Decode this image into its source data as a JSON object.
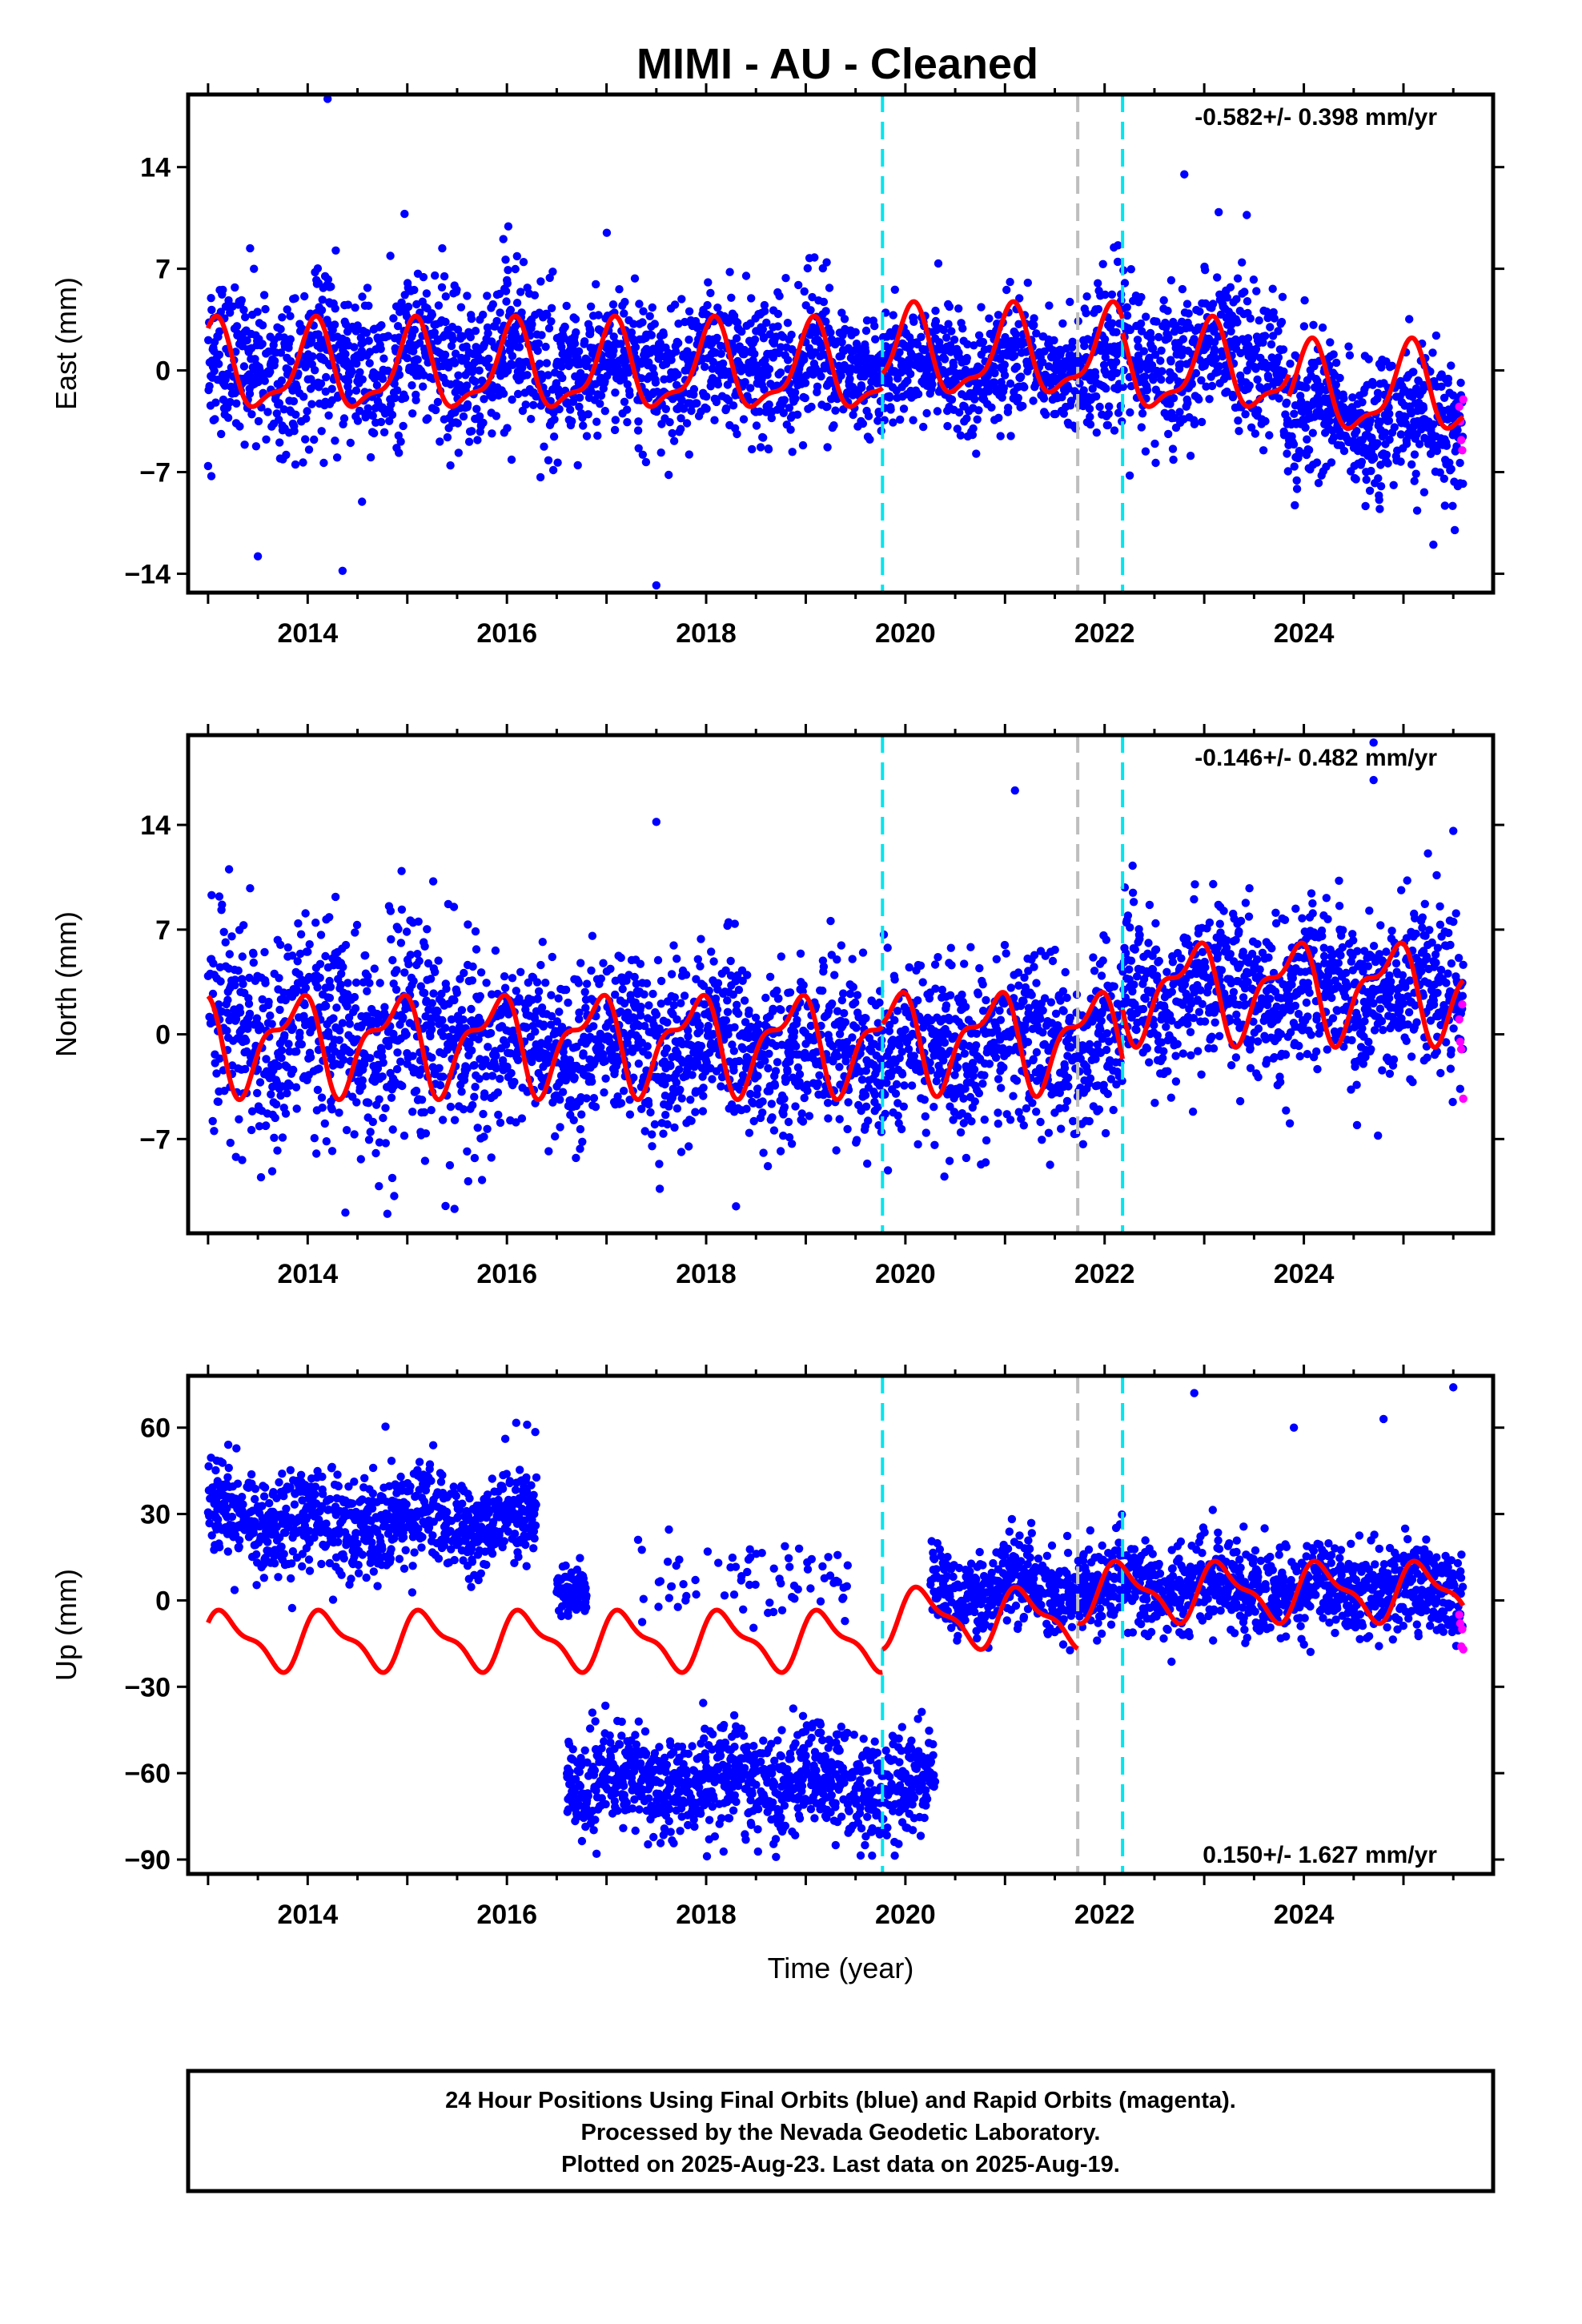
{
  "title": "MIMI  - AU - Cleaned",
  "footer": {
    "line1": "24 Hour Positions Using Final Orbits (blue) and Rapid Orbits (magenta).",
    "line2": "Processed by the Nevada Geodetic Laboratory.",
    "line3": "Plotted on 2025-Aug-23. Last data on 2025-Aug-19."
  },
  "colors": {
    "final_orbits": "#0000ff",
    "rapid_orbits": "#ff00ff",
    "model": "#ff0000",
    "equipment_change": "#00e5ee",
    "other_event": "#bebebe"
  },
  "chart_data": [
    {
      "type": "scatter",
      "panel": "east",
      "ylabel": "East (mm)",
      "xlabel": "",
      "rate_text": "-0.582+/- 0.398 mm/yr",
      "rate_position": "top-right",
      "xlim": [
        2012.8,
        2025.9
      ],
      "ylim": [
        -15.3,
        19.0
      ],
      "xticks": [
        2014,
        2016,
        2018,
        2020,
        2022,
        2024
      ],
      "yticks": [
        -14,
        -7,
        0,
        7,
        14
      ],
      "event_lines": [
        {
          "x": 2019.77,
          "kind": "equipment_change"
        },
        {
          "x": 2021.73,
          "kind": "other_event"
        },
        {
          "x": 2022.18,
          "kind": "equipment_change"
        }
      ],
      "data_segments": [
        {
          "from": 2013.0,
          "to": 2016.55,
          "mean": 0.5,
          "spread": 4.0
        },
        {
          "from": 2016.55,
          "to": 2019.3,
          "mean": 0.5,
          "spread": 3.5
        },
        {
          "from": 2019.3,
          "to": 2021.8,
          "mean": 0.3,
          "spread": 2.6
        },
        {
          "from": 2021.8,
          "to": 2023.8,
          "mean": 0.8,
          "spread": 4.0
        },
        {
          "from": 2023.8,
          "to": 2025.6,
          "mean": -3.5,
          "spread": 3.5
        }
      ],
      "outliers": [
        [
          2014.2,
          18.7
        ],
        [
          2017.5,
          -14.8
        ],
        [
          2022.8,
          13.5
        ],
        [
          2025.3,
          -12.0
        ],
        [
          2014.35,
          -13.8
        ],
        [
          2013.5,
          -12.8
        ]
      ],
      "rapid_points": [
        [
          2025.56,
          -2.5
        ],
        [
          2025.57,
          -3.5
        ],
        [
          2025.58,
          -4.8
        ],
        [
          2025.59,
          -5.5
        ],
        [
          2025.6,
          -2.0
        ]
      ],
      "model": {
        "description": "seasonal fit",
        "segments": [
          {
            "from": 2013.0,
            "to": 2019.77,
            "offset": 0.0
          },
          {
            "from": 2019.77,
            "to": 2022.18,
            "offset": 1.0
          },
          {
            "from": 2022.18,
            "to": 2023.85,
            "offset": 0.0
          },
          {
            "from": 2023.85,
            "to": 2025.6,
            "offset": -1.5
          }
        ],
        "annual_amp": 2.8,
        "semiannual_amp": 1.0,
        "annual_phase": 1.2,
        "semiannual_phase": 0.3
      }
    },
    {
      "type": "scatter",
      "panel": "north",
      "ylabel": "North (mm)",
      "xlabel": "",
      "rate_text": "-0.146+/- 0.482 mm/yr",
      "rate_position": "top-right",
      "xlim": [
        2012.8,
        2025.9
      ],
      "ylim": [
        -13.3,
        20.0
      ],
      "xticks": [
        2014,
        2016,
        2018,
        2020,
        2022,
        2024
      ],
      "yticks": [
        -7,
        0,
        7,
        14
      ],
      "event_lines": [
        {
          "x": 2019.77,
          "kind": "equipment_change"
        },
        {
          "x": 2021.73,
          "kind": "other_event"
        },
        {
          "x": 2022.18,
          "kind": "equipment_change"
        }
      ],
      "data_segments": [
        {
          "from": 2013.0,
          "to": 2016.0,
          "mean": 0.0,
          "spread": 5.0
        },
        {
          "from": 2016.0,
          "to": 2019.77,
          "mean": -0.8,
          "spread": 4.0
        },
        {
          "from": 2019.77,
          "to": 2022.18,
          "mean": -0.5,
          "spread": 4.0
        },
        {
          "from": 2022.18,
          "to": 2025.6,
          "mean": 2.8,
          "spread": 4.0
        }
      ],
      "outliers": [
        [
          2024.7,
          19.5
        ],
        [
          2021.1,
          16.3
        ],
        [
          2024.7,
          17.0
        ],
        [
          2017.5,
          14.2
        ],
        [
          2018.3,
          -11.5
        ],
        [
          2014.8,
          -12.0
        ],
        [
          2025.5,
          13.6
        ]
      ],
      "rapid_points": [
        [
          2025.56,
          1.0
        ],
        [
          2025.57,
          -0.5
        ],
        [
          2025.58,
          -1.0
        ],
        [
          2025.6,
          -4.3
        ],
        [
          2025.59,
          2.0
        ]
      ],
      "model": {
        "description": "seasonal fit",
        "segments": [
          {
            "from": 2013.0,
            "to": 2019.77,
            "offset": -0.5
          },
          {
            "from": 2019.77,
            "to": 2022.18,
            "offset": -0.3
          },
          {
            "from": 2022.18,
            "to": 2025.6,
            "offset": 3.0
          }
        ],
        "annual_amp": 2.8,
        "semiannual_amp": 1.3,
        "annual_phase": 2.4,
        "semiannual_phase": 1.1
      }
    },
    {
      "type": "scatter",
      "panel": "up",
      "ylabel": "Up (mm)",
      "xlabel": "Time (year)",
      "rate_text": "0.150+/- 1.627 mm/yr",
      "rate_position": "bottom-right",
      "xlim": [
        2012.8,
        2025.9
      ],
      "ylim": [
        -95.0,
        78.0
      ],
      "xticks": [
        2014,
        2016,
        2018,
        2020,
        2022,
        2024
      ],
      "yticks": [
        -90,
        -60,
        -30,
        0,
        30,
        60
      ],
      "event_lines": [
        {
          "x": 2019.77,
          "kind": "equipment_change"
        },
        {
          "x": 2021.73,
          "kind": "other_event"
        },
        {
          "x": 2022.18,
          "kind": "equipment_change"
        }
      ],
      "data_segments": [
        {
          "from": 2013.0,
          "to": 2016.3,
          "mean": 28.0,
          "spread": 13.0
        },
        {
          "from": 2016.5,
          "to": 2016.8,
          "mean": 5.0,
          "spread": 6.0
        },
        {
          "from": 2016.6,
          "to": 2020.3,
          "mean": -63.0,
          "spread": 13.0
        },
        {
          "from": 2017.3,
          "to": 2019.5,
          "mean": 8.0,
          "spread": 10.0,
          "density": 0.12
        },
        {
          "from": 2020.25,
          "to": 2025.6,
          "mean": 4.0,
          "spread": 11.0
        }
      ],
      "outliers": [
        [
          2022.9,
          72.0
        ],
        [
          2025.5,
          74.0
        ],
        [
          2016.9,
          -88.0
        ],
        [
          2019.3,
          -85.0
        ],
        [
          2023.9,
          60.0
        ],
        [
          2024.8,
          63.0
        ]
      ],
      "rapid_points": [
        [
          2025.56,
          -5.0
        ],
        [
          2025.57,
          -8.0
        ],
        [
          2025.58,
          -16.0
        ],
        [
          2025.6,
          -17.0
        ],
        [
          2025.59,
          -10.0
        ]
      ],
      "model": {
        "description": "seasonal fit",
        "segments": [
          {
            "from": 2013.0,
            "to": 2019.77,
            "offset": -14.0
          },
          {
            "from": 2019.77,
            "to": 2021.73,
            "offset": -6.0
          },
          {
            "from": 2021.73,
            "to": 2025.6,
            "offset": 3.0
          }
        ],
        "annual_amp": 9.0,
        "semiannual_amp": 3.5,
        "annual_phase": 0.4,
        "semiannual_phase": 0.9
      }
    }
  ]
}
